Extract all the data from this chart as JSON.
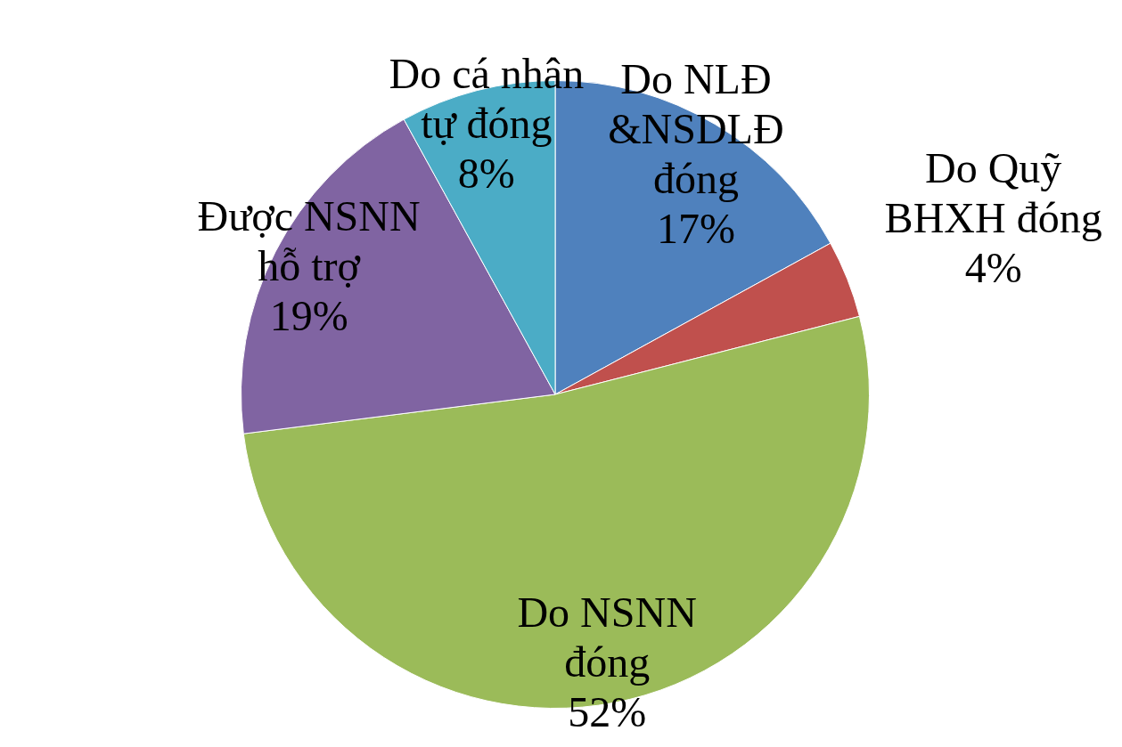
{
  "chart_data": {
    "type": "pie",
    "categories": [
      "Do NLĐ\n&NSDLĐ\nđóng",
      "Do Quỹ\nBHXH đóng",
      "Do NSNN\nđóng",
      "Được NSNN\nhỗ trợ",
      "Do cá nhân\ntự đóng"
    ],
    "values": [
      17,
      4,
      52,
      19,
      8
    ],
    "colors": [
      "#4f81bd",
      "#c0504d",
      "#9bbb59",
      "#8064a2",
      "#4bacc6"
    ],
    "value_labels": [
      "17%",
      "4%",
      "52%",
      "19%",
      "8%"
    ],
    "legend": false
  }
}
